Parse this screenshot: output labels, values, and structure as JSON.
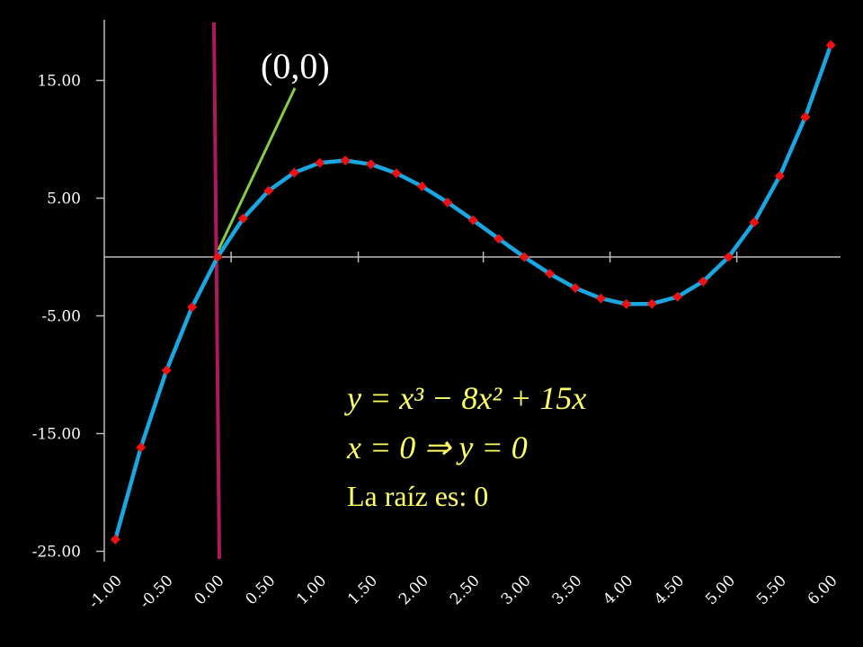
{
  "chart_data": {
    "type": "scatter",
    "x": [
      -1.0,
      -0.75,
      -0.5,
      -0.25,
      0.0,
      0.25,
      0.5,
      0.75,
      1.0,
      1.25,
      1.5,
      1.75,
      2.0,
      2.25,
      2.5,
      2.75,
      3.0,
      3.25,
      3.5,
      3.75,
      4.0,
      4.25,
      4.5,
      4.75,
      5.0,
      5.25,
      5.5,
      5.75,
      6.0
    ],
    "series": [
      {
        "values": [
          -24.0,
          -16.17,
          -9.63,
          -4.27,
          0.0,
          3.27,
          5.63,
          7.17,
          8.0,
          8.2,
          7.88,
          7.11,
          6.0,
          4.64,
          3.13,
          1.55,
          0.0,
          -1.42,
          -2.63,
          -3.52,
          -4.0,
          -3.98,
          -3.38,
          -2.08,
          0.0,
          2.95,
          6.88,
          11.89,
          18.0
        ],
        "line_color": "#1aa6e0",
        "marker_color": "#ee1111"
      }
    ],
    "y_ticks": [
      "15.00",
      "5.00",
      "-5.00",
      "-15.00",
      "-25.00"
    ],
    "x_ticks": [
      "-1.00",
      "-0.50",
      "0.00",
      "0.50",
      "1.00",
      "1.50",
      "2.00",
      "2.50",
      "3.00",
      "3.50",
      "4.00",
      "4.50",
      "5.00",
      "5.50",
      "6.00"
    ],
    "xlim": [
      -1.0,
      6.0
    ],
    "ylim": [
      -25,
      20
    ],
    "grid": false,
    "vertical_line_color": "#b0185e",
    "pointer_color": "#88cc44",
    "annotation_point": "(0,0)",
    "equation": {
      "line1": "y = x³ − 8x² + 15x",
      "line2": "x = 0 ⇒ y = 0",
      "line3": "La raíz es: 0"
    }
  }
}
